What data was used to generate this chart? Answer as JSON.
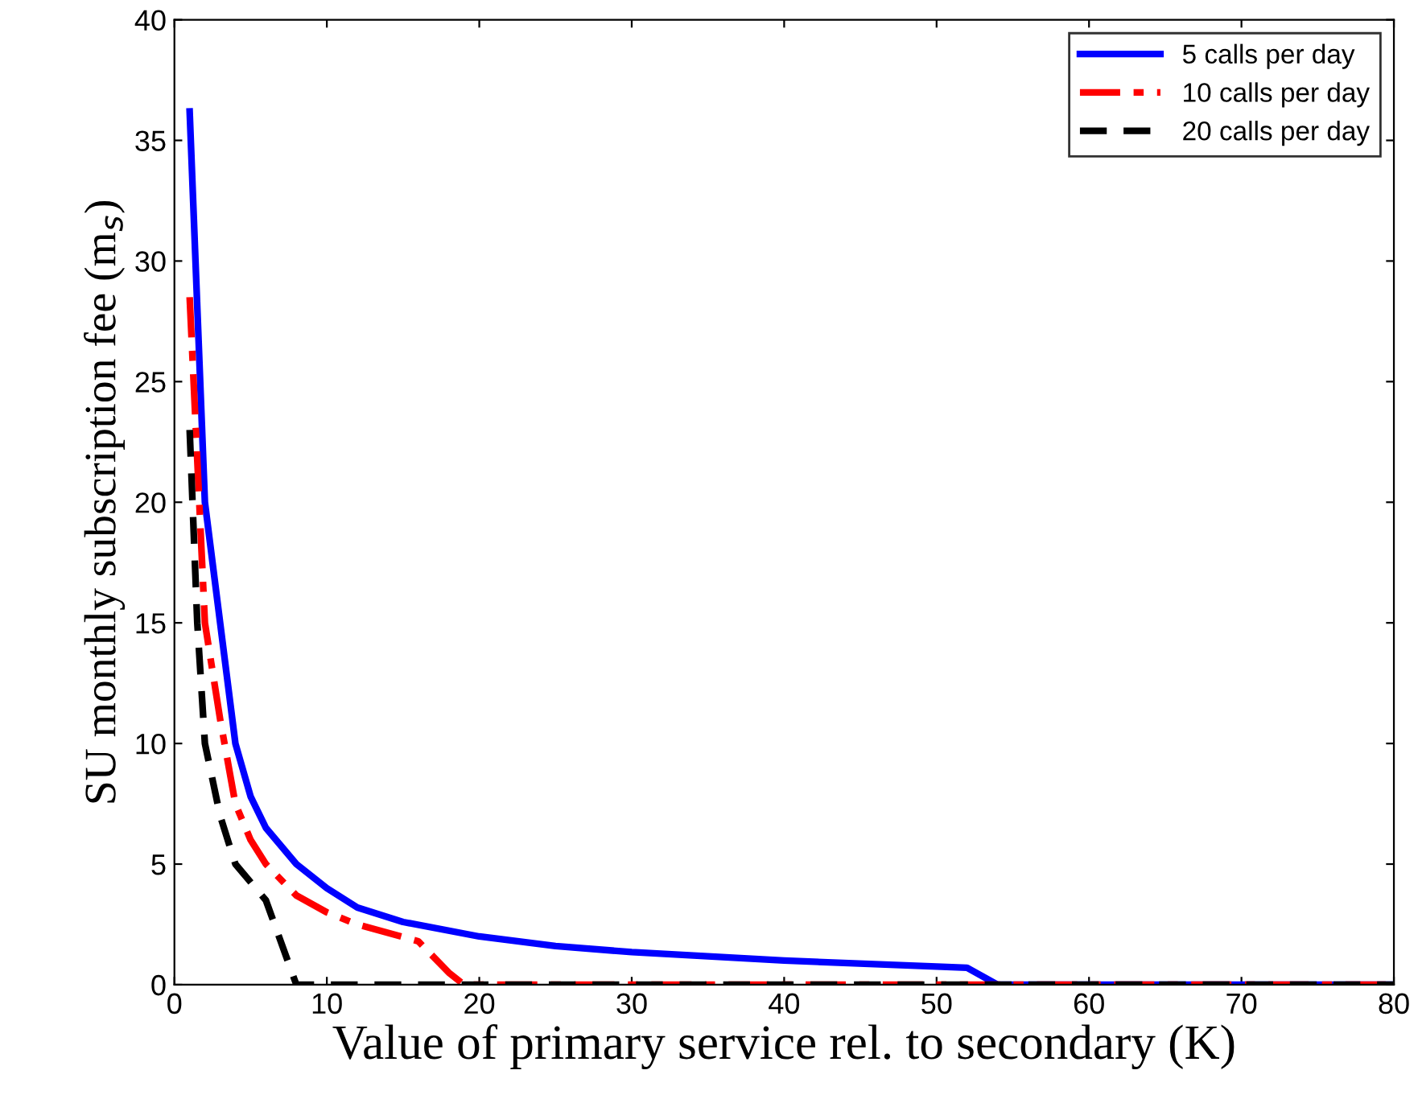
{
  "chart_data": {
    "type": "line",
    "xlabel": "Value of primary service rel. to secondary (K)",
    "ylabel": "SU monthly subscription fee (m$_{s}$)",
    "xlim": [
      0,
      80
    ],
    "ylim": [
      0,
      40
    ],
    "xticks": [
      0,
      10,
      20,
      30,
      40,
      50,
      60,
      70,
      80
    ],
    "yticks": [
      0,
      5,
      10,
      15,
      20,
      25,
      30,
      35,
      40
    ],
    "grid": false,
    "legend": "top right",
    "series": [
      {
        "name": "5 calls per day",
        "color": "#0000ff",
        "line_style": "solid",
        "x": [
          1,
          2,
          3,
          4,
          5,
          6,
          8,
          10,
          12,
          15,
          20,
          25,
          30,
          40,
          50,
          52,
          54,
          80
        ],
        "values": [
          36.2,
          20,
          15,
          10,
          7.8,
          6.5,
          5,
          4,
          3.2,
          2.6,
          2.0,
          1.6,
          1.35,
          1.0,
          0.75,
          0.7,
          0,
          0
        ]
      },
      {
        "name": "10 calls per day",
        "color": "#ff0000",
        "line_style": "dashdot",
        "x": [
          1,
          2,
          3,
          4,
          5,
          6,
          8,
          10,
          12,
          16,
          18,
          19,
          80
        ],
        "values": [
          28.5,
          15,
          11,
          7.5,
          6,
          5,
          3.7,
          3.0,
          2.5,
          1.8,
          0.5,
          0,
          0
        ]
      },
      {
        "name": "20 calls per day",
        "color": "#000000",
        "line_style": "dashed",
        "x": [
          1,
          1.5,
          2,
          3,
          4,
          6,
          8,
          80
        ],
        "values": [
          23,
          15,
          10,
          7,
          5,
          3.5,
          0,
          0
        ]
      }
    ]
  }
}
